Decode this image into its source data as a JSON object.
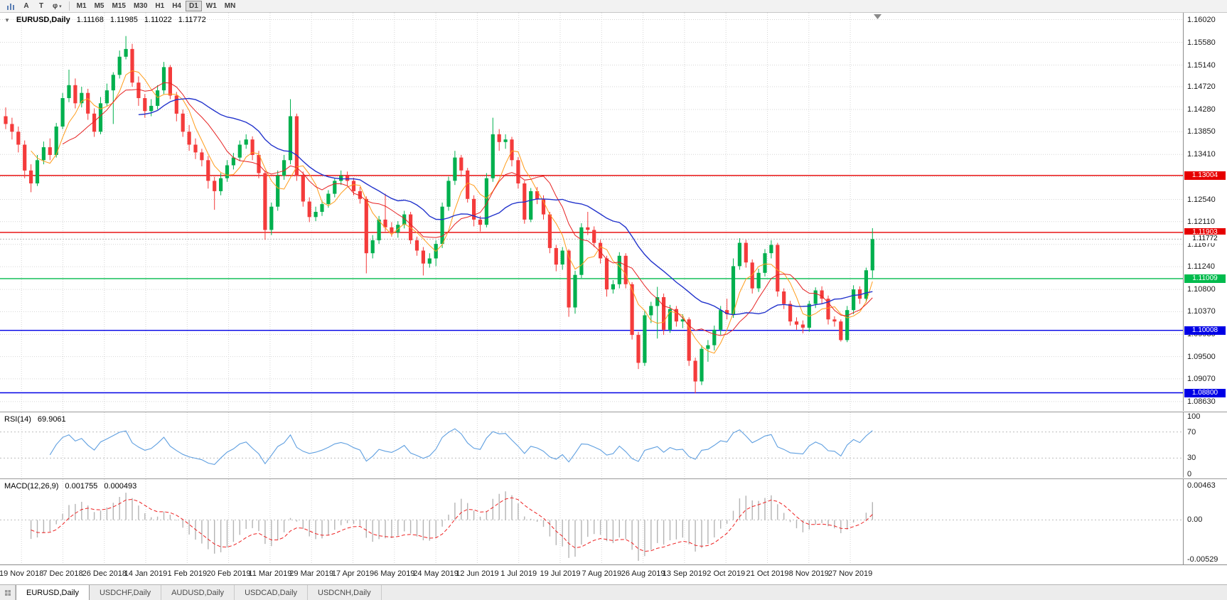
{
  "icons": {
    "collapse_caret": "▼",
    "dropdown_caret": "▾",
    "fibonacci_glyph": "φ"
  },
  "colors": {
    "up": "#00b04e",
    "down": "#f43b3b",
    "ma_fast": "#ff9c1a",
    "ma_mid": "#e62222",
    "ma_slow": "#2233cc",
    "grid": "#d6d6d6",
    "rsi": "#5f9fe0",
    "macd_hist": "#b4b4b4",
    "macd_signal": "#ee2222"
  },
  "toolbar": {
    "tools": [
      {
        "label": "A"
      },
      {
        "label": "T"
      },
      {
        "label": "φ"
      }
    ],
    "timeframes": [
      {
        "label": "M1"
      },
      {
        "label": "M5"
      },
      {
        "label": "M15"
      },
      {
        "label": "M30"
      },
      {
        "label": "H1"
      },
      {
        "label": "H4"
      },
      {
        "label": "D1",
        "active": true
      },
      {
        "label": "W1"
      },
      {
        "label": "MN"
      }
    ]
  },
  "tabs": [
    {
      "label": "EURUSD,Daily",
      "active": true
    },
    {
      "label": "USDCHF,Daily"
    },
    {
      "label": "AUDUSD,Daily"
    },
    {
      "label": "USDCAD,Daily"
    },
    {
      "label": "USDCNH,Daily"
    }
  ],
  "chart_data": {
    "type": "candlestick",
    "symbol_label": "EURUSD,Daily",
    "ohlc": {
      "open": "1.11168",
      "high": "1.11985",
      "low": "1.11022",
      "close": "1.11772"
    },
    "price_axis": {
      "ticks": [
        {
          "label": "1.16020",
          "value": 1.1602
        },
        {
          "label": "1.15580",
          "value": 1.1558
        },
        {
          "label": "1.15140",
          "value": 1.1514
        },
        {
          "label": "1.14720",
          "value": 1.1472
        },
        {
          "label": "1.14280",
          "value": 1.1428
        },
        {
          "label": "1.13850",
          "value": 1.1385
        },
        {
          "label": "1.13410",
          "value": 1.1341
        },
        {
          "label": "1.12980",
          "value": 1.1298,
          "hidden": true
        },
        {
          "label": "1.12540",
          "value": 1.1254
        },
        {
          "label": "1.12110",
          "value": 1.1211
        },
        {
          "label": "1.11670",
          "value": 1.1167
        },
        {
          "label": "1.11240",
          "value": 1.1124
        },
        {
          "label": "1.10800",
          "value": 1.108
        },
        {
          "label": "1.10370",
          "value": 1.1037
        },
        {
          "label": "1.09930",
          "value": 1.0993
        },
        {
          "label": "1.09500",
          "value": 1.095
        },
        {
          "label": "1.09070",
          "value": 1.0907
        },
        {
          "label": "1.08630",
          "value": 1.0863
        }
      ],
      "range": [
        1.0845,
        1.1615
      ]
    },
    "hlines": [
      {
        "value": 1.13004,
        "color": "#e60000"
      },
      {
        "value": 1.11903,
        "color": "#e60000"
      },
      {
        "value": 1.11009,
        "color": "#00bb4d"
      },
      {
        "value": 1.10008,
        "color": "#0000e6"
      },
      {
        "value": 1.088,
        "color": "#0000e6"
      }
    ],
    "badges": [
      {
        "label": "1.13004",
        "value": 1.13004,
        "bg": "#e60000",
        "fg": "#ffffff"
      },
      {
        "label": "1.11903",
        "value": 1.11903,
        "bg": "#e60000",
        "fg": "#ffffff"
      },
      {
        "label": "1.11772",
        "value": 1.11772,
        "bg": "#ffffff",
        "fg": "#000000"
      },
      {
        "label": "1.11009",
        "value": 1.11009,
        "bg": "#00bb4d",
        "fg": "#ffffff"
      },
      {
        "label": "1.10008",
        "value": 1.10008,
        "bg": "#0000e6",
        "fg": "#ffffff"
      },
      {
        "label": "1.08800",
        "value": 1.088,
        "bg": "#0000e6",
        "fg": "#ffffff"
      }
    ],
    "bid": {
      "label": "1.11772",
      "value": 1.11772
    },
    "x_labels": [
      "19 Nov 2018",
      "7 Dec 2018",
      "26 Dec 2018",
      "14 Jan 2019",
      "1 Feb 2019",
      "20 Feb 2019",
      "11 Mar 2019",
      "29 Mar 2019",
      "17 Apr 2019",
      "6 May 2019",
      "24 May 2019",
      "12 Jun 2019",
      "1 Jul 2019",
      "19 Jul 2019",
      "7 Aug 2019",
      "26 Aug 2019",
      "13 Sep 2019",
      "2 Oct 2019",
      "21 Oct 2019",
      "8 Nov 2019",
      "27 Nov 2019"
    ],
    "candles": [
      [
        1.1415,
        1.1432,
        1.139,
        1.14
      ],
      [
        1.14,
        1.1412,
        1.137,
        1.1385
      ],
      [
        1.1385,
        1.1395,
        1.1345,
        1.136
      ],
      [
        1.136,
        1.1368,
        1.1295,
        1.131
      ],
      [
        1.131,
        1.1322,
        1.1268,
        1.1285
      ],
      [
        1.1285,
        1.134,
        1.128,
        1.133
      ],
      [
        1.133,
        1.1366,
        1.1322,
        1.1355
      ],
      [
        1.1355,
        1.1372,
        1.133,
        1.134
      ],
      [
        1.134,
        1.1402,
        1.1335,
        1.1395
      ],
      [
        1.1395,
        1.146,
        1.139,
        1.145
      ],
      [
        1.145,
        1.1505,
        1.1442,
        1.1475
      ],
      [
        1.1475,
        1.1488,
        1.143,
        1.144
      ],
      [
        1.144,
        1.1472,
        1.1432,
        1.146
      ],
      [
        1.146,
        1.1468,
        1.1408,
        1.142
      ],
      [
        1.142,
        1.143,
        1.1375,
        1.1385
      ],
      [
        1.1385,
        1.1452,
        1.138,
        1.144
      ],
      [
        1.144,
        1.1478,
        1.1435,
        1.1465
      ],
      [
        1.1465,
        1.15,
        1.14,
        1.1495
      ],
      [
        1.1495,
        1.1542,
        1.1488,
        1.153
      ],
      [
        1.153,
        1.157,
        1.1525,
        1.1545
      ],
      [
        1.1545,
        1.1555,
        1.1472,
        1.148
      ],
      [
        1.148,
        1.1492,
        1.1435,
        1.145
      ],
      [
        1.145,
        1.1458,
        1.1412,
        1.1425
      ],
      [
        1.1425,
        1.1448,
        1.1415,
        1.1435
      ],
      [
        1.1435,
        1.1475,
        1.1428,
        1.1465
      ],
      [
        1.1465,
        1.152,
        1.1458,
        1.151
      ],
      [
        1.151,
        1.1514,
        1.1448,
        1.1455
      ],
      [
        1.1455,
        1.1462,
        1.1405,
        1.142
      ],
      [
        1.142,
        1.1428,
        1.1375,
        1.1385
      ],
      [
        1.1385,
        1.1398,
        1.1348,
        1.136
      ],
      [
        1.136,
        1.1372,
        1.1332,
        1.1345
      ],
      [
        1.1345,
        1.1352,
        1.1318,
        1.133
      ],
      [
        1.133,
        1.1338,
        1.1275,
        1.129
      ],
      [
        1.129,
        1.1298,
        1.1234,
        1.127
      ],
      [
        1.127,
        1.1305,
        1.1262,
        1.1295
      ],
      [
        1.1295,
        1.133,
        1.1288,
        1.132
      ],
      [
        1.132,
        1.1344,
        1.1312,
        1.1335
      ],
      [
        1.1335,
        1.1368,
        1.1328,
        1.136
      ],
      [
        1.136,
        1.138,
        1.1352,
        1.137
      ],
      [
        1.137,
        1.1376,
        1.133,
        1.134
      ],
      [
        1.134,
        1.1348,
        1.1295,
        1.1305
      ],
      [
        1.1305,
        1.131,
        1.1176,
        1.1195
      ],
      [
        1.1195,
        1.1248,
        1.1185,
        1.124
      ],
      [
        1.124,
        1.131,
        1.1232,
        1.13
      ],
      [
        1.13,
        1.134,
        1.1292,
        1.133
      ],
      [
        1.133,
        1.1448,
        1.1322,
        1.1415
      ],
      [
        1.1415,
        1.142,
        1.129,
        1.13
      ],
      [
        1.13,
        1.1308,
        1.124,
        1.125
      ],
      [
        1.125,
        1.1258,
        1.121,
        1.122
      ],
      [
        1.122,
        1.124,
        1.1212,
        1.123
      ],
      [
        1.123,
        1.1252,
        1.1222,
        1.1245
      ],
      [
        1.1245,
        1.1272,
        1.1238,
        1.1265
      ],
      [
        1.1265,
        1.1296,
        1.1258,
        1.129
      ],
      [
        1.129,
        1.131,
        1.1282,
        1.13
      ],
      [
        1.13,
        1.1308,
        1.128,
        1.129
      ],
      [
        1.129,
        1.1296,
        1.1262,
        1.127
      ],
      [
        1.127,
        1.1278,
        1.1246,
        1.1255
      ],
      [
        1.1255,
        1.126,
        1.1111,
        1.115
      ],
      [
        1.115,
        1.1185,
        1.114,
        1.1175
      ],
      [
        1.1175,
        1.1222,
        1.1168,
        1.1215
      ],
      [
        1.1215,
        1.1265,
        1.1192,
        1.12
      ],
      [
        1.12,
        1.121,
        1.1182,
        1.119
      ],
      [
        1.119,
        1.1212,
        1.118,
        1.1205
      ],
      [
        1.1205,
        1.1232,
        1.1198,
        1.1225
      ],
      [
        1.1225,
        1.123,
        1.1168,
        1.1175
      ],
      [
        1.1175,
        1.1182,
        1.1145,
        1.1155
      ],
      [
        1.1155,
        1.1162,
        1.1107,
        1.113
      ],
      [
        1.113,
        1.115,
        1.1122,
        1.114
      ],
      [
        1.114,
        1.1175,
        1.1125,
        1.1168
      ],
      [
        1.1168,
        1.1248,
        1.116,
        1.124
      ],
      [
        1.124,
        1.1298,
        1.1232,
        1.129
      ],
      [
        1.129,
        1.1348,
        1.1282,
        1.1335
      ],
      [
        1.1335,
        1.134,
        1.1298,
        1.131
      ],
      [
        1.131,
        1.1315,
        1.1248,
        1.1255
      ],
      [
        1.1255,
        1.1262,
        1.1202,
        1.1215
      ],
      [
        1.1215,
        1.1222,
        1.1192,
        1.1205
      ],
      [
        1.1205,
        1.1305,
        1.12,
        1.1295
      ],
      [
        1.1295,
        1.1412,
        1.1288,
        1.138
      ],
      [
        1.138,
        1.139,
        1.1348,
        1.1365
      ],
      [
        1.1365,
        1.138,
        1.1352,
        1.137
      ],
      [
        1.137,
        1.1375,
        1.1318,
        1.133
      ],
      [
        1.133,
        1.1336,
        1.1275,
        1.1285
      ],
      [
        1.1285,
        1.129,
        1.1207,
        1.1215
      ],
      [
        1.1215,
        1.1276,
        1.121,
        1.127
      ],
      [
        1.127,
        1.1278,
        1.1245,
        1.1255
      ],
      [
        1.1255,
        1.1262,
        1.1215,
        1.1225
      ],
      [
        1.1225,
        1.123,
        1.115,
        1.116
      ],
      [
        1.116,
        1.1166,
        1.1115,
        1.1128
      ],
      [
        1.1128,
        1.1162,
        1.1118,
        1.1155
      ],
      [
        1.1155,
        1.1158,
        1.1027,
        1.1045
      ],
      [
        1.1045,
        1.1116,
        1.1033,
        1.1108
      ],
      [
        1.1108,
        1.1208,
        1.1102,
        1.12
      ],
      [
        1.12,
        1.123,
        1.1185,
        1.1195
      ],
      [
        1.1195,
        1.1202,
        1.1162,
        1.117
      ],
      [
        1.117,
        1.1176,
        1.113,
        1.114
      ],
      [
        1.114,
        1.1145,
        1.1066,
        1.108
      ],
      [
        1.108,
        1.1098,
        1.1072,
        1.109
      ],
      [
        1.109,
        1.1152,
        1.1082,
        1.1145
      ],
      [
        1.1145,
        1.115,
        1.1082,
        1.109
      ],
      [
        1.109,
        1.1094,
        1.0983,
        1.0992
      ],
      [
        1.0992,
        1.0998,
        1.0926,
        1.0938
      ],
      [
        1.0938,
        1.1038,
        1.0932,
        1.103
      ],
      [
        1.103,
        1.1056,
        1.1015,
        1.1048
      ],
      [
        1.1048,
        1.1085,
        1.0985,
        1.1065
      ],
      [
        1.1065,
        1.1072,
        1.0992,
        1.1002
      ],
      [
        1.1002,
        1.105,
        1.0996,
        1.1042
      ],
      [
        1.1042,
        1.1048,
        1.1008,
        1.1018
      ],
      [
        1.1018,
        1.1032,
        1.1005,
        1.1022
      ],
      [
        1.1022,
        1.1026,
        1.0932,
        1.0942
      ],
      [
        1.0942,
        1.0948,
        1.0879,
        1.0902
      ],
      [
        1.0902,
        1.0972,
        1.0895,
        1.0965
      ],
      [
        1.0965,
        1.0982,
        1.094,
        1.0972
      ],
      [
        1.0972,
        1.101,
        1.0962,
        1.1002
      ],
      [
        1.1002,
        1.1048,
        1.0992,
        1.104
      ],
      [
        1.104,
        1.1062,
        1.1022,
        1.1032
      ],
      [
        1.1032,
        1.114,
        1.1025,
        1.1125
      ],
      [
        1.1125,
        1.1179,
        1.1118,
        1.117
      ],
      [
        1.117,
        1.1176,
        1.1122,
        1.1132
      ],
      [
        1.1132,
        1.1138,
        1.1072,
        1.1082
      ],
      [
        1.1082,
        1.112,
        1.1075,
        1.1112
      ],
      [
        1.1112,
        1.1158,
        1.1105,
        1.115
      ],
      [
        1.115,
        1.1175,
        1.114,
        1.1166
      ],
      [
        1.1166,
        1.117,
        1.1066,
        1.1076
      ],
      [
        1.1076,
        1.1082,
        1.1042,
        1.1052
      ],
      [
        1.1052,
        1.1058,
        1.101,
        1.1018
      ],
      [
        1.1018,
        1.1026,
        1.1002,
        1.1012
      ],
      [
        1.1012,
        1.102,
        1.0995,
        1.1006
      ],
      [
        1.1006,
        1.1058,
        1.0998,
        1.1052
      ],
      [
        1.1052,
        1.1084,
        1.1044,
        1.1078
      ],
      [
        1.1078,
        1.1086,
        1.1052,
        1.1062
      ],
      [
        1.1062,
        1.1068,
        1.1012,
        1.1022
      ],
      [
        1.1022,
        1.1028,
        1.1008,
        1.1018
      ],
      [
        1.1018,
        1.1022,
        1.0979,
        1.0982
      ],
      [
        1.0982,
        1.1048,
        1.0978,
        1.104
      ],
      [
        1.104,
        1.1088,
        1.1032,
        1.108
      ],
      [
        1.108,
        1.1086,
        1.1052,
        1.1062
      ],
      [
        1.1062,
        1.1122,
        1.1055,
        1.1117
      ],
      [
        1.11168,
        1.11985,
        1.11022,
        1.11772
      ]
    ],
    "rsi": {
      "title": "RSI(14)",
      "value": "69.9061",
      "axis": [
        {
          "label": "100",
          "value": 100
        },
        {
          "label": "70",
          "value": 70
        },
        {
          "label": "30",
          "value": 30
        },
        {
          "label": "0",
          "value": 0
        }
      ],
      "levels": [
        70,
        30
      ]
    },
    "macd": {
      "title": "MACD(12,26,9)",
      "value_main": "0.001755",
      "value_signal": "0.000493",
      "axis": [
        {
          "label": "0.00463",
          "value": 0.00463
        },
        {
          "label": "0.00",
          "value": 0
        },
        {
          "label": "-0.00529",
          "value": -0.00529
        }
      ]
    }
  }
}
